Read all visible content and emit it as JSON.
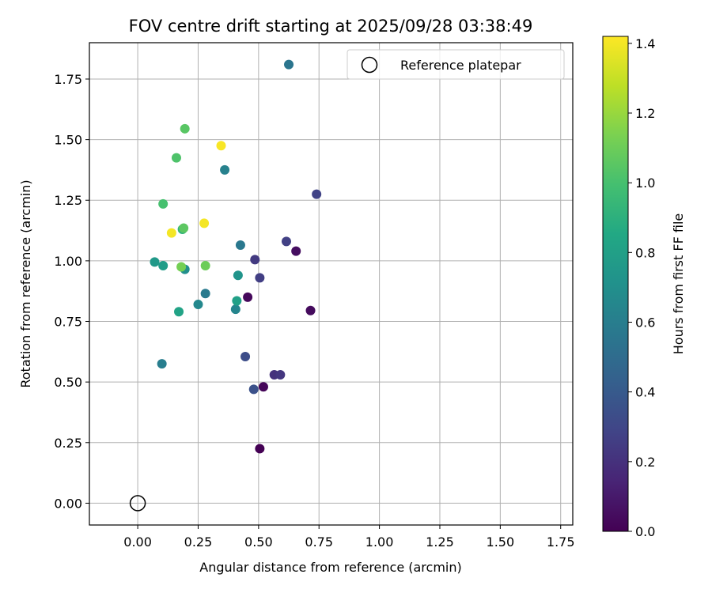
{
  "chart_data": {
    "type": "scatter",
    "title": "FOV centre drift starting at 2025/09/28 03:38:49",
    "xlabel": "Angular distance from reference (arcmin)",
    "ylabel": "Rotation from reference (arcmin)",
    "xlim": [
      -0.2,
      1.8
    ],
    "ylim": [
      -0.09,
      1.9
    ],
    "xticks": [
      0.0,
      0.25,
      0.5,
      0.75,
      1.0,
      1.25,
      1.5,
      1.75
    ],
    "xtick_labels": [
      "0.00",
      "0.25",
      "0.50",
      "0.75",
      "1.00",
      "1.25",
      "1.50",
      "1.75"
    ],
    "yticks": [
      0.0,
      0.25,
      0.5,
      0.75,
      1.0,
      1.25,
      1.5,
      1.75
    ],
    "ytick_labels": [
      "0.00",
      "0.25",
      "0.50",
      "0.75",
      "1.00",
      "1.25",
      "1.50",
      "1.75"
    ],
    "grid": true,
    "legend": {
      "position": "top-right",
      "entries": [
        "Reference platepar"
      ]
    },
    "reference_point": {
      "x": 0.0,
      "y": 0.0,
      "label": "Reference platepar"
    },
    "colorbar": {
      "label": "Hours from first FF file",
      "range": [
        0.0,
        1.42
      ],
      "ticks": [
        0.0,
        0.2,
        0.4,
        0.6,
        0.8,
        1.0,
        1.2,
        1.4
      ],
      "tick_labels": [
        "0.0",
        "0.2",
        "0.4",
        "0.6",
        "0.8",
        "1.0",
        "1.2",
        "1.4"
      ],
      "colormap": "viridis"
    },
    "points": [
      {
        "x": 0.505,
        "y": 0.225,
        "h": 0.0
      },
      {
        "x": 0.52,
        "y": 0.48,
        "h": 0.02
      },
      {
        "x": 0.455,
        "y": 0.85,
        "h": 0.03
      },
      {
        "x": 0.715,
        "y": 0.795,
        "h": 0.04
      },
      {
        "x": 0.655,
        "y": 1.04,
        "h": 0.05
      },
      {
        "x": 0.565,
        "y": 0.53,
        "h": 0.2
      },
      {
        "x": 0.59,
        "y": 0.53,
        "h": 0.22
      },
      {
        "x": 0.485,
        "y": 1.005,
        "h": 0.24
      },
      {
        "x": 0.505,
        "y": 0.93,
        "h": 0.26
      },
      {
        "x": 0.615,
        "y": 1.08,
        "h": 0.27
      },
      {
        "x": 0.74,
        "y": 1.275,
        "h": 0.28
      },
      {
        "x": 0.445,
        "y": 0.605,
        "h": 0.33
      },
      {
        "x": 0.48,
        "y": 0.47,
        "h": 0.35
      },
      {
        "x": 0.625,
        "y": 1.81,
        "h": 0.55
      },
      {
        "x": 0.425,
        "y": 1.065,
        "h": 0.57
      },
      {
        "x": 0.28,
        "y": 0.865,
        "h": 0.58
      },
      {
        "x": 0.1,
        "y": 0.575,
        "h": 0.6
      },
      {
        "x": 0.36,
        "y": 1.375,
        "h": 0.62
      },
      {
        "x": 0.405,
        "y": 0.8,
        "h": 0.64
      },
      {
        "x": 0.25,
        "y": 0.82,
        "h": 0.66
      },
      {
        "x": 0.195,
        "y": 0.965,
        "h": 0.7
      },
      {
        "x": 0.415,
        "y": 0.94,
        "h": 0.73
      },
      {
        "x": 0.07,
        "y": 0.995,
        "h": 0.76
      },
      {
        "x": 0.105,
        "y": 0.98,
        "h": 0.78
      },
      {
        "x": 0.41,
        "y": 0.835,
        "h": 0.8
      },
      {
        "x": 0.17,
        "y": 0.79,
        "h": 0.82
      },
      {
        "x": 0.185,
        "y": 1.13,
        "h": 0.92
      },
      {
        "x": 0.105,
        "y": 1.235,
        "h": 1.0
      },
      {
        "x": 0.16,
        "y": 1.425,
        "h": 1.02
      },
      {
        "x": 0.195,
        "y": 1.545,
        "h": 1.05
      },
      {
        "x": 0.19,
        "y": 1.135,
        "h": 1.06
      },
      {
        "x": 0.28,
        "y": 0.98,
        "h": 1.1
      },
      {
        "x": 0.18,
        "y": 0.975,
        "h": 1.12
      },
      {
        "x": 0.14,
        "y": 1.115,
        "h": 1.4
      },
      {
        "x": 0.275,
        "y": 1.155,
        "h": 1.4
      },
      {
        "x": 0.345,
        "y": 1.475,
        "h": 1.41
      }
    ]
  }
}
